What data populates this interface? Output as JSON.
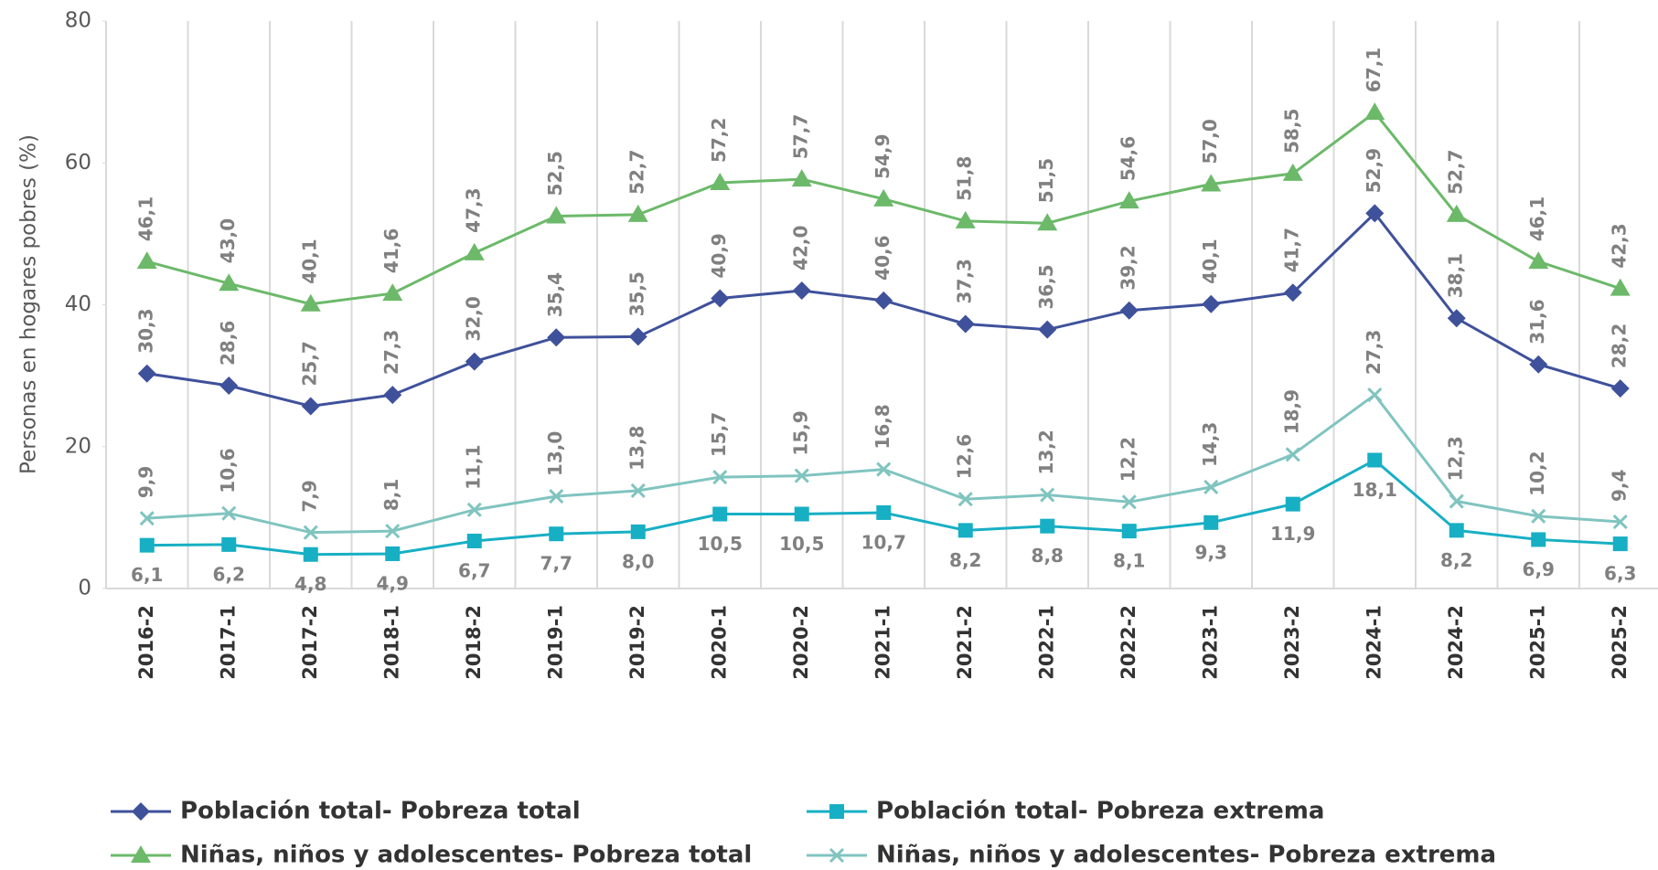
{
  "chart_data": {
    "type": "line",
    "y_label": "Personas en hogares pobres (%)",
    "categories": [
      "2016-2",
      "2017-1",
      "2017-2",
      "2018-1",
      "2018-2",
      "2019-1",
      "2019-2",
      "2020-1",
      "2020-2",
      "2021-1",
      "2021-2",
      "2022-1",
      "2022-2",
      "2023-1",
      "2023-2",
      "2024-1",
      "2024-2",
      "2025-1",
      "2025-2"
    ],
    "ylim": [
      0,
      80
    ],
    "yticks": [
      0,
      20,
      40,
      60,
      80
    ],
    "grid": true,
    "series": [
      {
        "name": "Población total- Pobreza total",
        "color": "#3f519b",
        "marker": "diamond",
        "values": [
          30.3,
          28.6,
          25.7,
          27.3,
          32.0,
          35.4,
          35.5,
          40.9,
          42.0,
          40.6,
          37.3,
          36.5,
          39.2,
          40.1,
          41.7,
          52.9,
          38.1,
          31.6,
          28.2
        ],
        "value_labels": [
          "30,3",
          "28,6",
          "25,7",
          "27,3",
          "32,0",
          "35,4",
          "35,5",
          "40,9",
          "42,0",
          "40,6",
          "37,3",
          "36,5",
          "39,2",
          "40,1",
          "41,7",
          "52,9",
          "38,1",
          "31,6",
          "28,2"
        ]
      },
      {
        "name": "Población total- Pobreza extrema",
        "color": "#17afc4",
        "marker": "square",
        "values": [
          6.1,
          6.2,
          4.8,
          4.9,
          6.7,
          7.7,
          8.0,
          10.5,
          10.5,
          10.7,
          8.2,
          8.8,
          8.1,
          9.3,
          11.9,
          18.1,
          8.2,
          6.9,
          6.3
        ],
        "value_labels": [
          "6,1",
          "6,2",
          "4,8",
          "4,9",
          "6,7",
          "7,7",
          "8,0",
          "10,5",
          "10,5",
          "10,7",
          "8,2",
          "8,8",
          "8,1",
          "9,3",
          "11,9",
          "18,1",
          "8,2",
          "6,9",
          "6,3"
        ]
      },
      {
        "name": "Niñas, niños y adolescentes- Pobreza total",
        "color": "#6cb96a",
        "marker": "triangle",
        "values": [
          46.1,
          43.0,
          40.1,
          41.6,
          47.3,
          52.5,
          52.7,
          57.2,
          57.7,
          54.9,
          51.8,
          51.5,
          54.6,
          57.0,
          58.5,
          67.1,
          52.7,
          46.1,
          42.3
        ],
        "value_labels": [
          "46,1",
          "43,0",
          "40,1",
          "41,6",
          "47,3",
          "52,5",
          "52,7",
          "57,2",
          "57,7",
          "54,9",
          "51,8",
          "51,5",
          "54,6",
          "57,0",
          "58,5",
          "67,1",
          "52,7",
          "46,1",
          "42,3"
        ]
      },
      {
        "name": "Niñas, niños y adolescentes- Pobreza extrema",
        "color": "#80c4c0",
        "marker": "x",
        "values": [
          9.9,
          10.6,
          7.9,
          8.1,
          11.1,
          13.0,
          13.8,
          15.7,
          15.9,
          16.8,
          12.6,
          13.2,
          12.2,
          14.3,
          18.9,
          27.3,
          12.3,
          10.2,
          9.4
        ],
        "value_labels": [
          "9,9",
          "10,6",
          "7,9",
          "8,1",
          "11,1",
          "13,0",
          "13,8",
          "15,7",
          "15,9",
          "16,8",
          "12,6",
          "13,2",
          "12,2",
          "14,3",
          "18,9",
          "27,3",
          "12,3",
          "10,2",
          "9,4"
        ]
      }
    ]
  }
}
